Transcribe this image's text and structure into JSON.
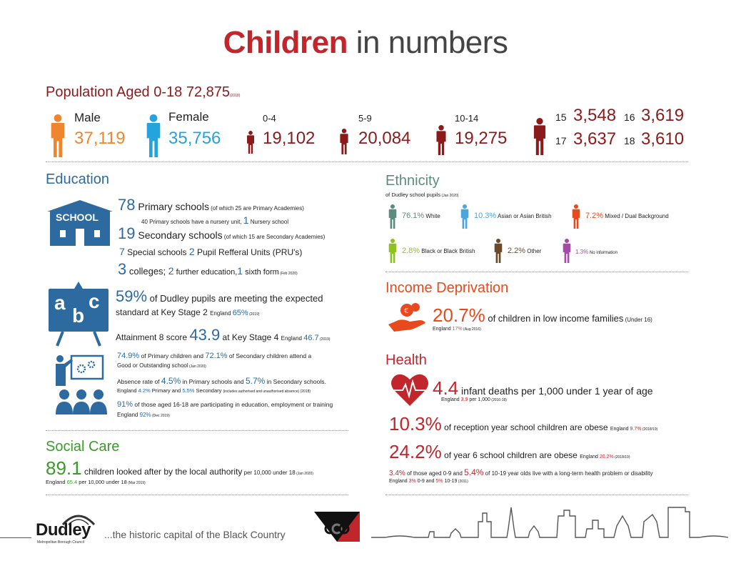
{
  "colors": {
    "title_red": "#c0262c",
    "dark_red": "#8b1a1a",
    "blue": "#2c6aa0",
    "orange": "#f0852d",
    "sky": "#23a4dd",
    "green": "#3a9a2a",
    "grey_green": "#5f8a7e",
    "light_blue": "#4aa6dd",
    "red_orange": "#e8491d",
    "lime": "#8dc21f",
    "brown": "#6b4a2a",
    "purple": "#a64ca6"
  },
  "title": {
    "bold": "Children",
    "rest": " in numbers"
  },
  "population": {
    "heading": "Population Aged 0-18 72,875",
    "year": "(2018)",
    "male_label": "Male",
    "male_value": "37,119",
    "female_label": "Female",
    "female_value": "35,756",
    "age_0_4_label": "0-4",
    "age_0_4_value": "19,102",
    "age_5_9_label": "5-9",
    "age_5_9_value": "20,084",
    "age_10_14_label": "10-14",
    "age_10_14_value": "19,275",
    "age_15_label": "15",
    "age_15_value": "3,548",
    "age_16_label": "16",
    "age_16_value": "3,619",
    "age_17_label": "17",
    "age_17_value": "3,637",
    "age_18_label": "18",
    "age_18_value": "3,610"
  },
  "education": {
    "heading": "Education",
    "school_icon_text": "SCHOOL",
    "abc_a": "a",
    "abc_b": "b",
    "abc_c": "c",
    "primary_num": "78",
    "primary_text": " Primary schools",
    "primary_note": " (of which 25 are Primary Academies)",
    "nursery_text": "40 Primary schools have a nursery unit, ",
    "nursery_num": "1",
    "nursery_text2": " Nursery school",
    "secondary_num": "19",
    "secondary_text": " Secondary schools",
    "secondary_note": " (of which 15 are Secondary Academies)",
    "special_num": "7",
    "special_text": " Special schools ",
    "pru_num": "2",
    "pru_text": " Pupil Refferal Units (PRU's)",
    "colleges_num": "3",
    "colleges_text": " colleges; ",
    "further_num": "2",
    "further_text": " further  education,",
    "sixth_num": "1",
    "sixth_text": " sixth form",
    "colleges_note": " (Feb 2020)",
    "ks2_pct": "59%",
    "ks2_text1": " of Dudley pupils are meeting the expected",
    "ks2_text2": "standard at Key Stage 2 ",
    "ks2_eng": "England ",
    "ks2_eng_val": "65%",
    "ks2_note": " (2019)",
    "att8_text": "Attainment 8 score ",
    "att8_val": "43.9",
    "att8_text2": " at Key Stage 4 ",
    "att8_eng": "England ",
    "att8_eng_val": "46.7",
    "att8_note": " (2019)",
    "good_pct1": "74.9%",
    "good_text1": " of Primary children and ",
    "good_pct2": "72.1%",
    "good_text2": " of Secondary children attend a",
    "good_text3": "Good or Outstanding school",
    "good_note": " (Jan 2020)",
    "abs_text1": "Absence rate of ",
    "abs_pct1": "4.5%",
    "abs_text2": " in Primary schools and ",
    "abs_pct2": "5.7%",
    "abs_text3": " in Secondary schools.",
    "abs_eng": "England ",
    "abs_eng1": "4.2%",
    "abs_eng_text1": " Primary and ",
    "abs_eng2": "5.5%",
    "abs_eng_text2": " Secondary ",
    "abs_note": "(includes authorised and unauthorised absence) (2018)",
    "neet_pct": "91%",
    "neet_text": " of those aged 16-18 are participating in education, employment or training",
    "neet_eng": "England ",
    "neet_eng_val": "92%",
    "neet_note": " (Dec 2019)"
  },
  "social_care": {
    "heading": "Social Care",
    "value": "89.1",
    "text": " children looked after by the local authority",
    "text2": " per 10,000 under 18",
    "note": " (Jan 2020)",
    "eng": "England ",
    "eng_val": "65.4",
    "eng_text": " per 10,000 under 18",
    "eng_note": " (Mar 2019)"
  },
  "ethnicity": {
    "heading": "Ethnicity",
    "sub": "of Dudley school pupils",
    "sub_note": " (Jan 2020)",
    "items": [
      {
        "pct": "76.1%",
        "label": " White"
      },
      {
        "pct": "10.3%",
        "label": " Asian or Asian British"
      },
      {
        "pct": "7.2%",
        "label": " Mixed / Dual Background"
      },
      {
        "pct": "2.8%",
        "label": " Black or Black British"
      },
      {
        "pct": "2.2%",
        "label": " Other"
      },
      {
        "pct": "1.3%",
        "label": " No information"
      }
    ]
  },
  "income": {
    "heading": "Income Deprivation",
    "pct": "20.7%",
    "text": " of children in low income families",
    "note": " (Under 16)",
    "eng": "England ",
    "eng_val": "17%",
    "eng_note": " (Aug 2016)"
  },
  "health": {
    "heading": "Health",
    "infant_val": "4.4",
    "infant_text": " infant deaths per 1,000 under 1 year of age",
    "infant_eng": "England ",
    "infant_eng_val": "3.9",
    "infant_eng_text": " per 1,000",
    "infant_note": " (2016-18)",
    "reception_pct": "10.3%",
    "reception_text": " of reception year school children are obese ",
    "reception_eng": "England ",
    "reception_eng_val": "9.7%",
    "reception_note": " (2018/19)",
    "year6_pct": "24.2%",
    "year6_text": " of year 6 school children are obese ",
    "year6_eng": "England ",
    "year6_eng_val": "20.2%",
    "year6_note": " (2018/19)",
    "lt_pct1": "3.4%",
    "lt_text1": " of those aged 0-9 and ",
    "lt_pct2": "5.4%",
    "lt_text2": " of 10-19 year olds live with a long-term health problem or disability",
    "lt_eng": "England ",
    "lt_eng1": "3%",
    "lt_eng_text1": " 0-9 and ",
    "lt_eng2": "5%",
    "lt_eng_text2": " 10-19",
    "lt_note": " (2011)"
  },
  "footer": {
    "logo": "Dudley",
    "logo_sub": "Metropolitan Borough Council",
    "tagline": "...the historic capital of the Black Country"
  }
}
